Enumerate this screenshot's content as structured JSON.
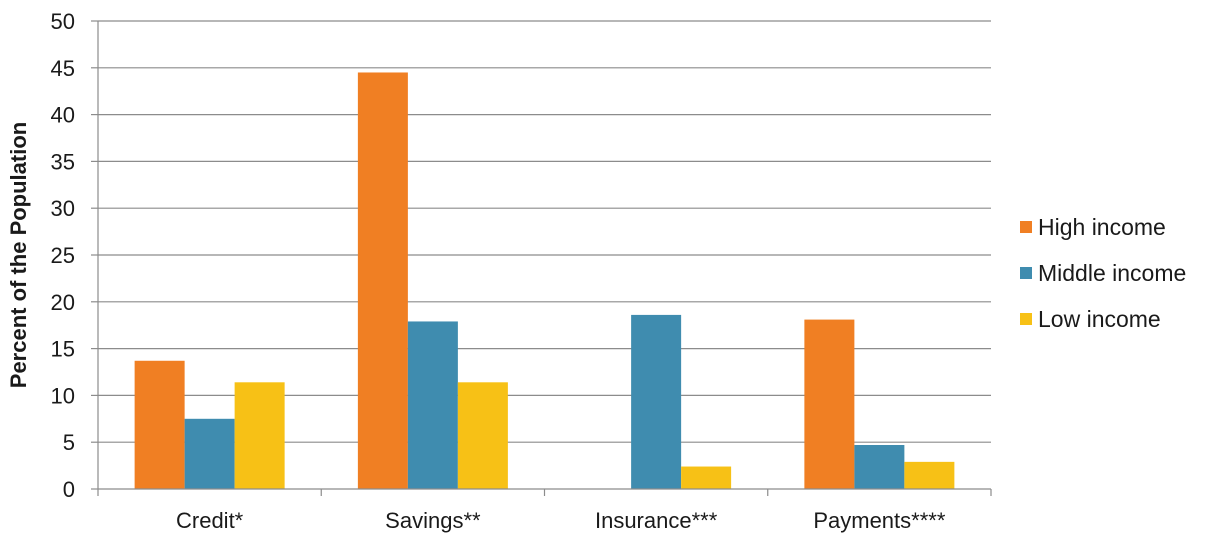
{
  "chart_data": {
    "type": "bar",
    "ylabel": "Percent of the Population",
    "xlabel": "",
    "ylim": [
      0,
      50
    ],
    "yticks": [
      0,
      5,
      10,
      15,
      20,
      25,
      30,
      35,
      40,
      45,
      50
    ],
    "grid": true,
    "legend_position": "right",
    "categories": [
      "Credit*",
      "Savings**",
      "Insurance***",
      "Payments****"
    ],
    "series": [
      {
        "name": "High income",
        "color": "#f07f23",
        "values": [
          13.7,
          44.5,
          0,
          18.1
        ]
      },
      {
        "name": "Middle income",
        "color": "#3f8caf",
        "values": [
          7.5,
          17.9,
          18.6,
          4.7
        ]
      },
      {
        "name": "Low income",
        "color": "#f7c116",
        "values": [
          11.4,
          11.4,
          2.4,
          2.9
        ]
      }
    ]
  }
}
